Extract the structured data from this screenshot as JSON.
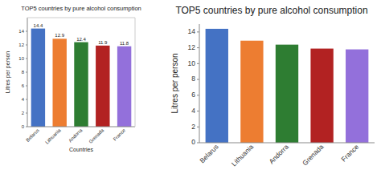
{
  "chart_data": [
    {
      "type": "bar",
      "title": "TOP5 countries by pure alcohol consumption",
      "xlabel": "Countries",
      "ylabel": "Litres per person",
      "categories": [
        "Belarus",
        "Lithuania",
        "Andorra",
        "Grenada",
        "France"
      ],
      "values": [
        14.4,
        12.9,
        12.4,
        11.9,
        11.8
      ],
      "colors": [
        "#4472c4",
        "#ed7d31",
        "#2e7d32",
        "#b22222",
        "#9370db"
      ],
      "ylim": [
        0,
        16
      ],
      "yticks": [
        0,
        2,
        4,
        6,
        8,
        10,
        12,
        14
      ],
      "data_labels": true
    },
    {
      "type": "bar",
      "title": "TOP5 countries by pure alcohol consumption",
      "ylabel": "Litres per person",
      "categories": [
        "Belarus",
        "Lithuania",
        "Andorra",
        "Grenada",
        "France"
      ],
      "values": [
        14.4,
        12.9,
        12.4,
        11.9,
        11.8
      ],
      "colors": [
        "#4472c4",
        "#ed7d31",
        "#2e7d32",
        "#b22222",
        "#9370db"
      ],
      "ylim": [
        0,
        15
      ],
      "yticks": [
        0,
        2,
        4,
        6,
        8,
        10,
        12,
        14
      ]
    }
  ]
}
